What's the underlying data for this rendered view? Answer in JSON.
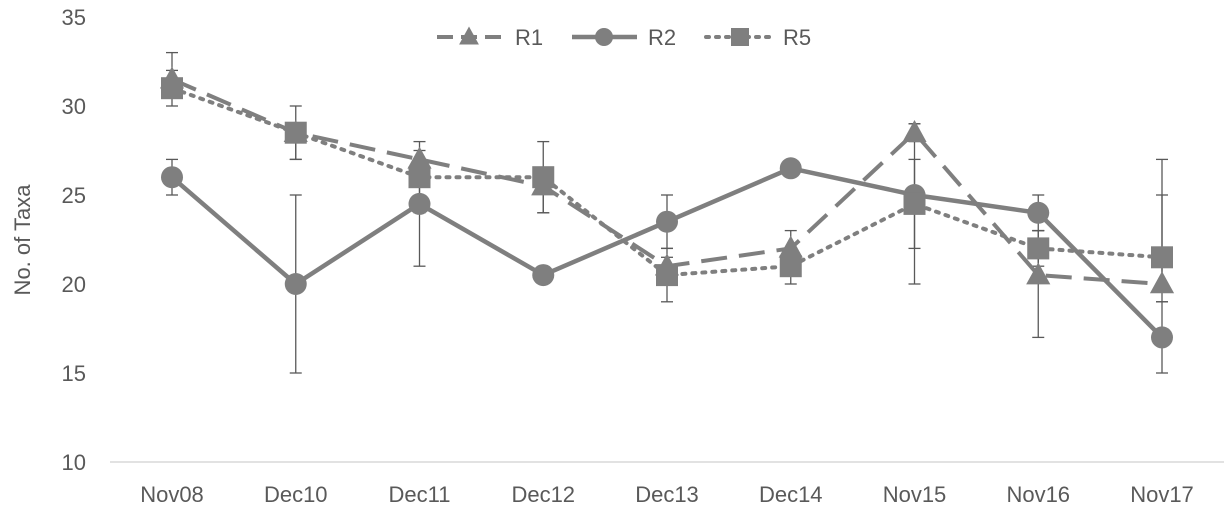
{
  "chart_data": {
    "type": "line",
    "title": "",
    "xlabel": "",
    "ylabel": "No. of Taxa",
    "categories": [
      "Nov08",
      "Dec10",
      "Dec11",
      "Dec12",
      "Dec13",
      "Dec14",
      "Nov15",
      "Nov16",
      "Nov17"
    ],
    "ylim": [
      10,
      35
    ],
    "yticks": [
      10,
      15,
      20,
      25,
      30,
      35
    ],
    "grid": false,
    "legend_position": "top-center",
    "series": [
      {
        "name": "R1",
        "values": [
          31.5,
          28.5,
          27,
          25.5,
          21,
          22,
          28.5,
          20.5,
          20
        ],
        "error_low": [
          30.5,
          27,
          26,
          24,
          20,
          21,
          28,
          17,
          19
        ],
        "error_high": [
          32,
          29,
          27.5,
          26,
          22,
          23,
          29,
          23,
          25
        ],
        "color": "#7f7f7f",
        "line_style": "dashed",
        "marker": "triangle"
      },
      {
        "name": "R2",
        "values": [
          26,
          20,
          24.5,
          20.5,
          23.5,
          26.5,
          25,
          24,
          17
        ],
        "error_low": [
          25,
          15,
          21,
          20.5,
          22,
          26.5,
          20,
          23,
          15
        ],
        "error_high": [
          27,
          25,
          28,
          20.5,
          25,
          26.5,
          29,
          25,
          19
        ],
        "color": "#7f7f7f",
        "line_style": "solid",
        "marker": "circle"
      },
      {
        "name": "R5",
        "values": [
          31,
          28.5,
          26,
          26,
          20.5,
          21,
          24.5,
          22,
          21.5
        ],
        "error_low": [
          30,
          27,
          24,
          24,
          19,
          20,
          22,
          21,
          20
        ],
        "error_high": [
          33,
          30,
          27,
          28,
          21.5,
          22,
          27,
          23,
          27
        ],
        "color": "#7f7f7f",
        "line_style": "dotted",
        "marker": "square"
      }
    ]
  }
}
